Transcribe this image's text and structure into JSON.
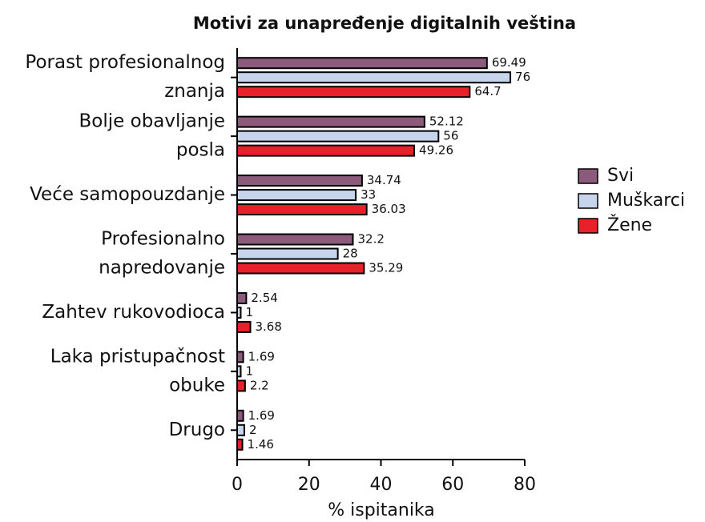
{
  "chart_data": {
    "type": "hbar",
    "title": "Motivi za unapređenje digitalnih veština",
    "xlabel": "% ispitanika",
    "categories": [
      [
        "Porast profesionalnog",
        "znanja"
      ],
      [
        "Bolje obavljanje",
        "posla"
      ],
      [
        "Veće samopouzdanje"
      ],
      [
        "Profesionalno",
        "napredovanje"
      ],
      [
        "Zahtev rukovodioca"
      ],
      [
        "Laka pristupačnost",
        "obuke"
      ],
      [
        "Drugo"
      ]
    ],
    "series": [
      {
        "name": "Svi",
        "color": "#8c5b7c",
        "values": [
          69.49,
          52.12,
          34.74,
          32.2,
          2.54,
          1.69,
          1.69
        ]
      },
      {
        "name": "Muškarci",
        "color": "#c6d4ec",
        "values": [
          76,
          56,
          33,
          28,
          1,
          1,
          2
        ]
      },
      {
        "name": "Žene",
        "color": "#e8202a",
        "values": [
          64.7,
          49.26,
          36.03,
          35.29,
          3.68,
          2.2,
          1.46
        ]
      }
    ],
    "xlim": [
      0,
      80
    ],
    "xticks": [
      0,
      20,
      40,
      60,
      80
    ],
    "legend": "right"
  }
}
